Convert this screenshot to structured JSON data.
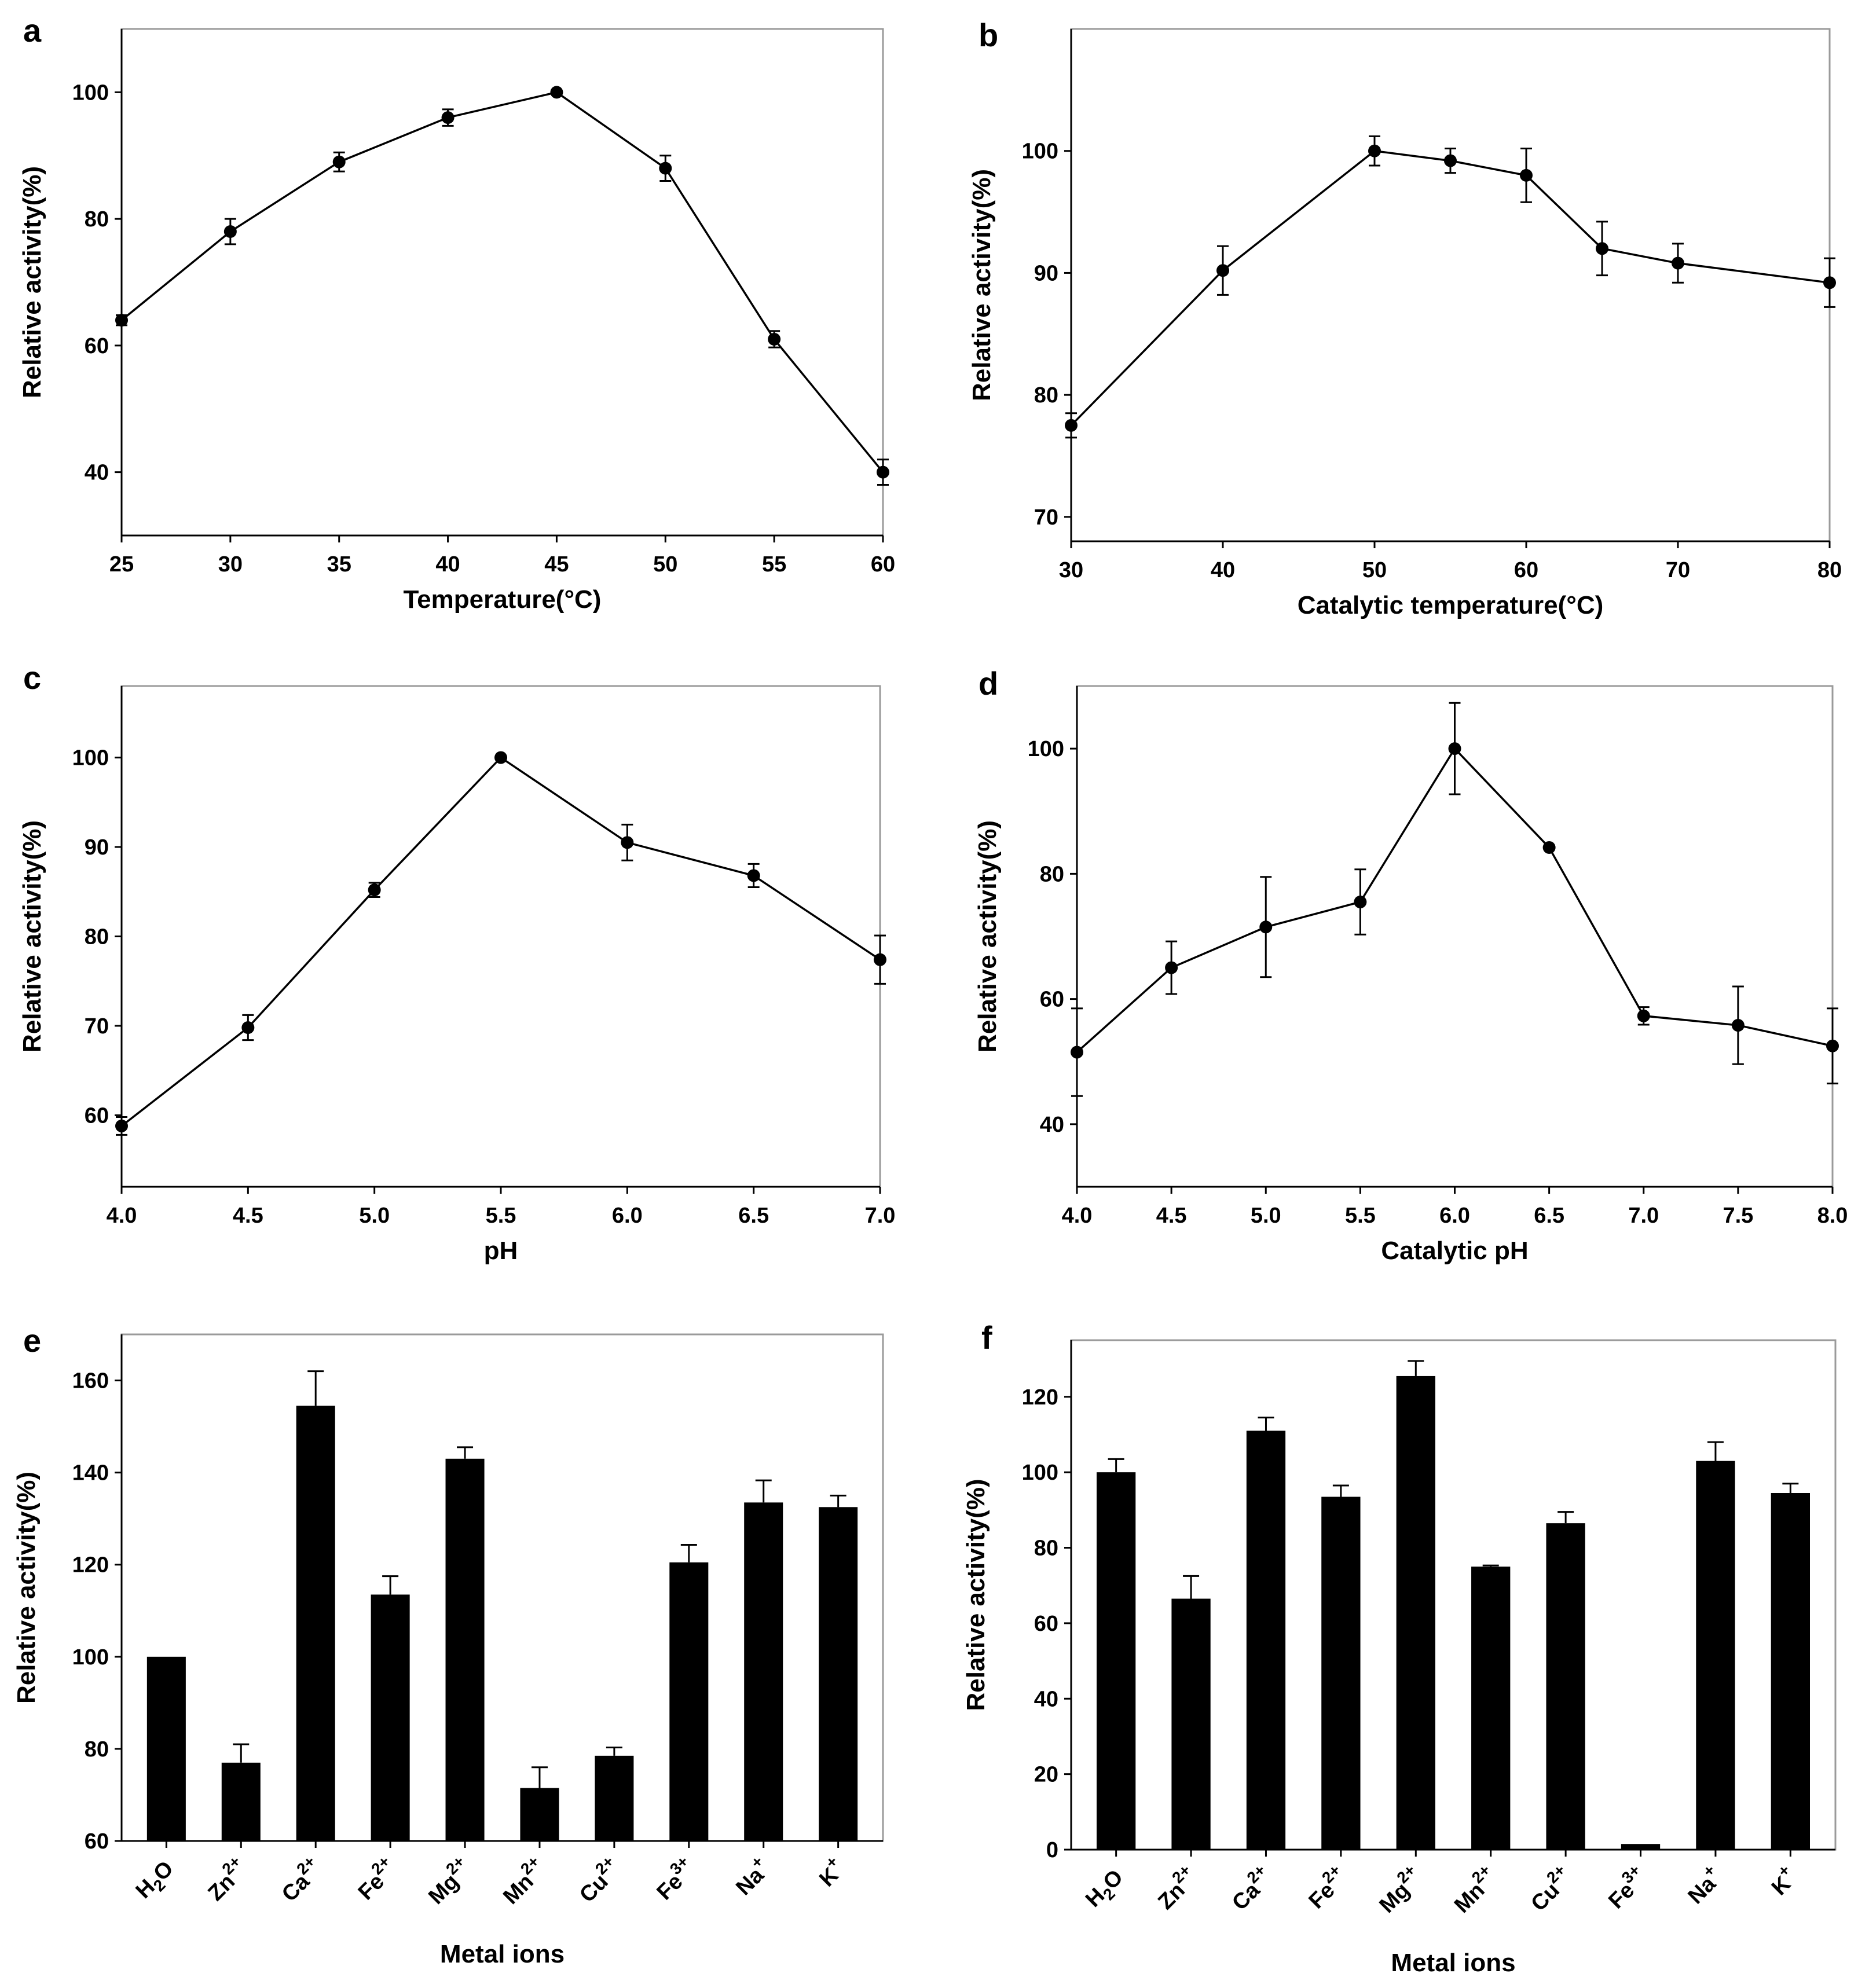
{
  "chart_data": [
    {
      "id": "a",
      "type": "line",
      "panel_label": "a",
      "xlabel": "Temperature(°C)",
      "ylabel": "Relative activity(%)",
      "x": [
        25,
        30,
        35,
        40,
        45,
        50,
        55,
        60
      ],
      "values": [
        64,
        78,
        89,
        96,
        100,
        88,
        61,
        40
      ],
      "errors": [
        0.8,
        2.0,
        1.5,
        1.3,
        0,
        2.0,
        1.3,
        2.0
      ],
      "xticks": [
        25,
        30,
        35,
        40,
        45,
        50,
        55,
        60
      ],
      "xtick_labels": [
        "25",
        "30",
        "35",
        "40",
        "45",
        "50",
        "55",
        "60"
      ],
      "yticks": [
        40,
        60,
        80,
        100
      ],
      "ytick_labels": [
        "40",
        "60",
        "80",
        "100"
      ],
      "xlim": [
        25,
        60
      ],
      "ylim": [
        30,
        110
      ]
    },
    {
      "id": "b",
      "type": "line",
      "panel_label": "b",
      "xlabel": "Catalytic temperature(°C)",
      "ylabel": "Relative activity(%)",
      "x": [
        30,
        40,
        50,
        55,
        60,
        65,
        70,
        80
      ],
      "values": [
        77.5,
        90.2,
        100,
        99.2,
        98,
        92,
        90.8,
        89.2
      ],
      "errors": [
        1.0,
        2.0,
        1.2,
        1.0,
        2.2,
        2.2,
        1.6,
        2.0
      ],
      "xticks": [
        30,
        40,
        50,
        60,
        70,
        80
      ],
      "xtick_labels": [
        "30",
        "40",
        "50",
        "60",
        "70",
        "80"
      ],
      "yticks": [
        70,
        80,
        90,
        100
      ],
      "ytick_labels": [
        "70",
        "80",
        "90",
        "100"
      ],
      "xlim": [
        30,
        80
      ],
      "ylim": [
        68,
        110
      ]
    },
    {
      "id": "c",
      "type": "line",
      "panel_label": "c",
      "xlabel": "pH",
      "ylabel": "Relative activity(%)",
      "x": [
        4.0,
        4.5,
        5.0,
        5.5,
        6.0,
        6.5,
        7.0
      ],
      "values": [
        58.8,
        69.8,
        85.2,
        100,
        90.5,
        86.8,
        77.4
      ],
      "errors": [
        1.0,
        1.4,
        0.8,
        0,
        2.0,
        1.3,
        2.7
      ],
      "xticks": [
        4.0,
        4.5,
        5.0,
        5.5,
        6.0,
        6.5,
        7.0
      ],
      "xtick_labels": [
        "4.0",
        "4.5",
        "5.0",
        "5.5",
        "6.0",
        "6.5",
        "7.0"
      ],
      "yticks": [
        60,
        70,
        80,
        90,
        100
      ],
      "ytick_labels": [
        "60",
        "70",
        "80",
        "90",
        "100"
      ],
      "xlim": [
        4.0,
        7.0
      ],
      "ylim": [
        52,
        108
      ]
    },
    {
      "id": "d",
      "type": "line",
      "panel_label": "d",
      "xlabel": "Catalytic pH",
      "ylabel": "Relative activity(%)",
      "x": [
        4.0,
        4.5,
        5.0,
        5.5,
        6.0,
        6.5,
        7.0,
        7.5,
        8.0
      ],
      "values": [
        51.5,
        65,
        71.5,
        75.5,
        100,
        84.2,
        57.3,
        55.8,
        52.5
      ],
      "errors": [
        7.0,
        4.2,
        8.0,
        5.2,
        7.3,
        0,
        1.4,
        6.2,
        6.0
      ],
      "xticks": [
        4.0,
        4.5,
        5.0,
        5.5,
        6.0,
        6.5,
        7.0,
        7.5,
        8.0
      ],
      "xtick_labels": [
        "4.0",
        "4.5",
        "5.0",
        "5.5",
        "6.0",
        "6.5",
        "7.0",
        "7.5",
        "8.0"
      ],
      "yticks": [
        40,
        60,
        80,
        100
      ],
      "ytick_labels": [
        "40",
        "60",
        "80",
        "100"
      ],
      "xlim": [
        4.0,
        8.0
      ],
      "ylim": [
        30,
        110
      ]
    },
    {
      "id": "e",
      "type": "bar",
      "panel_label": "e",
      "xlabel": "Metal ions",
      "ylabel": "Relative activity(%)",
      "categories": [
        {
          "base": "H",
          "sub": "2",
          "tail": "O",
          "sup": ""
        },
        {
          "base": "Zn",
          "sub": "",
          "tail": "",
          "sup": "2+"
        },
        {
          "base": "Ca",
          "sub": "",
          "tail": "",
          "sup": "2+"
        },
        {
          "base": "Fe",
          "sub": "",
          "tail": "",
          "sup": "2+"
        },
        {
          "base": "Mg",
          "sub": "",
          "tail": "",
          "sup": "2+"
        },
        {
          "base": "Mn",
          "sub": "",
          "tail": "",
          "sup": "2+"
        },
        {
          "base": "Cu",
          "sub": "",
          "tail": "",
          "sup": "2+"
        },
        {
          "base": "Fe",
          "sub": "",
          "tail": "",
          "sup": "3+"
        },
        {
          "base": "Na",
          "sub": "",
          "tail": "",
          "sup": "+"
        },
        {
          "base": "K",
          "sub": "",
          "tail": "",
          "sup": "+"
        }
      ],
      "values": [
        100,
        77,
        154.5,
        113.5,
        143,
        71.5,
        78.5,
        120.5,
        133.5,
        132.5
      ],
      "errors": [
        0,
        4,
        7.5,
        4.0,
        2.5,
        4.5,
        1.8,
        3.8,
        4.8,
        2.5
      ],
      "yticks": [
        60,
        80,
        100,
        120,
        140,
        160
      ],
      "ytick_labels": [
        "60",
        "80",
        "100",
        "120",
        "140",
        "160"
      ],
      "ylim": [
        60,
        170
      ]
    },
    {
      "id": "f",
      "type": "bar",
      "panel_label": "f",
      "xlabel": "Metal ions",
      "ylabel": "Relative activity(%)",
      "categories": [
        {
          "base": "H",
          "sub": "2",
          "tail": "O",
          "sup": ""
        },
        {
          "base": "Zn",
          "sub": "",
          "tail": "",
          "sup": "2+"
        },
        {
          "base": "Ca",
          "sub": "",
          "tail": "",
          "sup": "2+"
        },
        {
          "base": "Fe",
          "sub": "",
          "tail": "",
          "sup": "2+"
        },
        {
          "base": "Mg",
          "sub": "",
          "tail": "",
          "sup": "2+"
        },
        {
          "base": "Mn",
          "sub": "",
          "tail": "",
          "sup": "2+"
        },
        {
          "base": "Cu",
          "sub": "",
          "tail": "",
          "sup": "2+"
        },
        {
          "base": "Fe",
          "sub": "",
          "tail": "",
          "sup": "3+"
        },
        {
          "base": "Na",
          "sub": "",
          "tail": "",
          "sup": "+"
        },
        {
          "base": "K",
          "sub": "",
          "tail": "",
          "sup": "+"
        }
      ],
      "values": [
        100,
        66.5,
        111,
        93.5,
        125.5,
        75,
        86.5,
        1.5,
        103,
        94.5
      ],
      "errors": [
        3.5,
        6.0,
        3.5,
        3.0,
        4.0,
        0.3,
        3.0,
        0,
        5.0,
        2.5
      ],
      "yticks": [
        0,
        20,
        40,
        60,
        80,
        100,
        120
      ],
      "ytick_labels": [
        "0",
        "20",
        "40",
        "60",
        "80",
        "100",
        "120"
      ],
      "ylim": [
        0,
        135
      ]
    }
  ]
}
